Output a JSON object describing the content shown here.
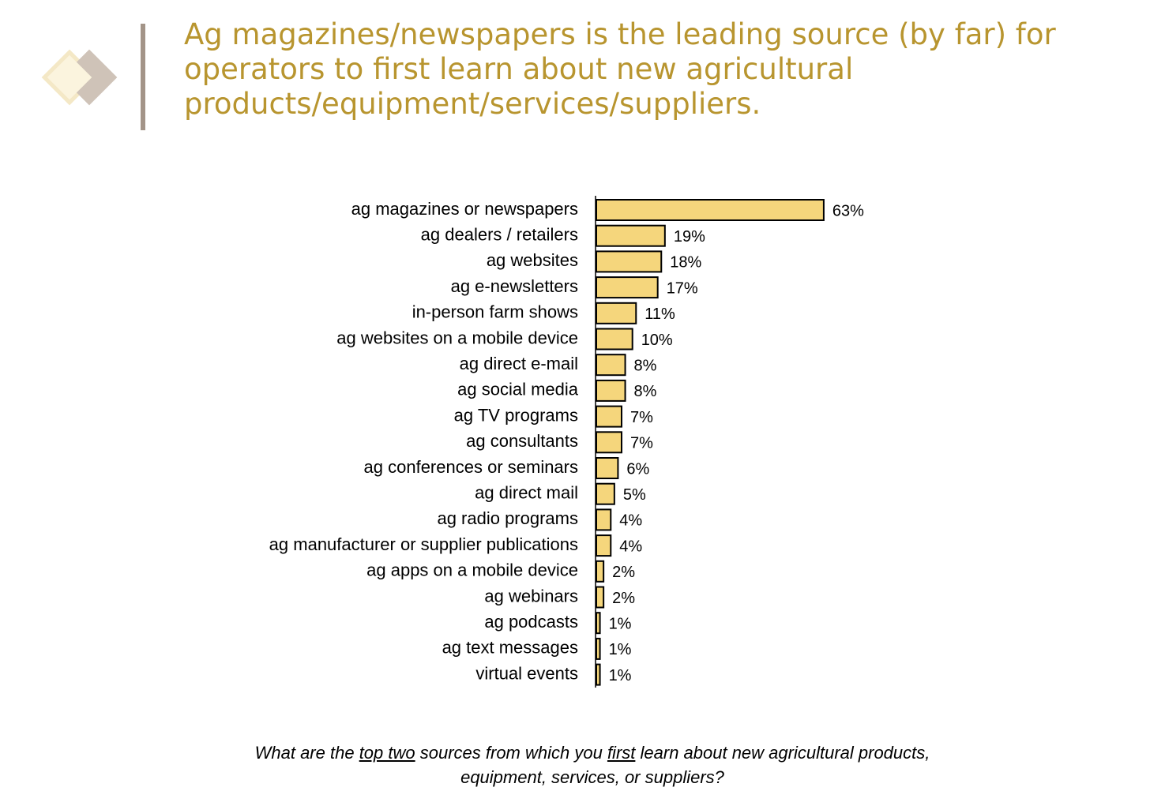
{
  "chart_data": {
    "type": "bar",
    "orientation": "horizontal",
    "title": "Ag magazines/newspapers is the leading source (by far) for operators to first learn about new agricultural products/equipment/services/suppliers.",
    "categories": [
      "ag magazines or newspapers",
      "ag dealers / retailers",
      "ag websites",
      "ag e-newsletters",
      "in-person farm shows",
      "ag websites on a mobile device",
      "ag direct e-mail",
      "ag social media",
      "ag TV programs",
      "ag consultants",
      "ag conferences or seminars",
      "ag direct mail",
      "ag radio programs",
      "ag manufacturer or supplier publications",
      "ag apps on a mobile device",
      "ag webinars",
      "ag podcasts",
      "ag text messages",
      "virtual events"
    ],
    "values": [
      63,
      19,
      18,
      17,
      11,
      10,
      8,
      8,
      7,
      7,
      6,
      5,
      4,
      4,
      2,
      2,
      1,
      1,
      1
    ],
    "value_labels": [
      "63%",
      "19%",
      "18%",
      "17%",
      "11%",
      "10%",
      "8%",
      "8%",
      "7%",
      "7%",
      "6%",
      "5%",
      "4%",
      "4%",
      "2%",
      "2%",
      "1%",
      "1%",
      "1%"
    ],
    "color": "#f5d67c",
    "question": [
      {
        "text": "What are the ",
        "underline": false
      },
      {
        "text": "top two",
        "underline": true
      },
      {
        "text": " sources from which you ",
        "underline": false
      },
      {
        "text": "first",
        "underline": true
      },
      {
        "text": " learn about new agricultural products, equipment, services, or suppliers?",
        "underline": false
      }
    ]
  }
}
